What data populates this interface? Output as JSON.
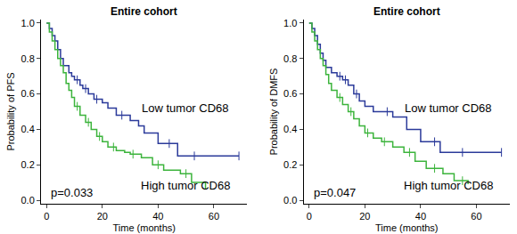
{
  "chart_data": [
    {
      "type": "line",
      "line_style": "step",
      "title": "Entire cohort",
      "x_label": "Time (months)",
      "y_label": "Probability of PFS",
      "annotation": "p=0.033",
      "xlim": [
        -2,
        72
      ],
      "xticks": [
        0,
        20,
        40,
        60
      ],
      "ylim": [
        -0.02,
        1.02
      ],
      "yticks": [
        {
          "value": 0,
          "label": "0.0"
        },
        {
          "value": 0.2,
          "label": "0.2"
        },
        {
          "value": 0.4,
          "label": "0.4"
        },
        {
          "value": 0.6,
          "label": "0.6"
        },
        {
          "value": 0.8,
          "label": "0.8"
        },
        {
          "value": 1,
          "label": "1.0"
        }
      ],
      "grid": false,
      "series": [
        {
          "name": "Low tumor CD68",
          "color": "#2b3a9a",
          "x": [
            0,
            1,
            2,
            3,
            4,
            5,
            6,
            8,
            9,
            10,
            12,
            13,
            15,
            17,
            20,
            22,
            25,
            30,
            33,
            35,
            40,
            47,
            69
          ],
          "values": [
            1,
            0.97,
            0.93,
            0.9,
            0.85,
            0.8,
            0.76,
            0.72,
            0.7,
            0.68,
            0.65,
            0.63,
            0.6,
            0.57,
            0.55,
            0.52,
            0.48,
            0.45,
            0.42,
            0.38,
            0.32,
            0.25,
            0.25
          ],
          "censor_x": [
            11,
            14,
            18,
            27,
            44,
            53,
            69
          ],
          "censor_y": [
            0.68,
            0.63,
            0.57,
            0.48,
            0.32,
            0.25,
            0.25
          ]
        },
        {
          "name": "High tumor CD68",
          "color": "#3cb43c",
          "x": [
            0,
            1,
            2,
            3,
            4,
            5,
            6,
            7,
            8,
            9,
            10,
            12,
            14,
            16,
            18,
            20,
            22,
            25,
            28,
            30,
            34,
            38,
            42,
            48,
            52,
            57
          ],
          "values": [
            1,
            0.95,
            0.9,
            0.85,
            0.8,
            0.76,
            0.72,
            0.66,
            0.62,
            0.58,
            0.53,
            0.48,
            0.44,
            0.4,
            0.36,
            0.33,
            0.3,
            0.28,
            0.27,
            0.26,
            0.24,
            0.2,
            0.17,
            0.15,
            0.1,
            0.06
          ],
          "censor_x": [
            11,
            15,
            19,
            24,
            31,
            40,
            50
          ],
          "censor_y": [
            0.53,
            0.44,
            0.36,
            0.3,
            0.26,
            0.2,
            0.15
          ]
        }
      ]
    },
    {
      "type": "line",
      "line_style": "step",
      "title": "Entire cohort",
      "x_label": "Time (months)",
      "y_label": "Probability of DMFS",
      "annotation": "p=0.047",
      "xlim": [
        -2,
        72
      ],
      "xticks": [
        0,
        20,
        40,
        60
      ],
      "ylim": [
        -0.02,
        1.02
      ],
      "yticks": [
        {
          "value": 0,
          "label": "0.0"
        },
        {
          "value": 0.2,
          "label": "0.2"
        },
        {
          "value": 0.4,
          "label": "0.4"
        },
        {
          "value": 0.6,
          "label": "0.6"
        },
        {
          "value": 0.8,
          "label": "0.8"
        },
        {
          "value": 1,
          "label": "1.0"
        }
      ],
      "grid": false,
      "series": [
        {
          "name": "Low tumor CD68",
          "color": "#2b3a9a",
          "x": [
            0,
            1,
            2,
            3,
            4,
            5,
            6,
            8,
            10,
            12,
            14,
            16,
            18,
            20,
            23,
            26,
            30,
            35,
            40,
            47,
            69
          ],
          "values": [
            1,
            0.97,
            0.93,
            0.88,
            0.83,
            0.79,
            0.75,
            0.72,
            0.7,
            0.68,
            0.65,
            0.6,
            0.56,
            0.53,
            0.5,
            0.5,
            0.47,
            0.4,
            0.33,
            0.27,
            0.27
          ],
          "censor_x": [
            11,
            13,
            17,
            28,
            45,
            55,
            69
          ],
          "censor_y": [
            0.7,
            0.68,
            0.6,
            0.5,
            0.33,
            0.27,
            0.27
          ]
        },
        {
          "name": "High tumor CD68",
          "color": "#3cb43c",
          "x": [
            0,
            1,
            2,
            3,
            4,
            5,
            6,
            7,
            8,
            10,
            12,
            14,
            16,
            18,
            20,
            23,
            26,
            30,
            34,
            38,
            42,
            48,
            52,
            57
          ],
          "values": [
            1,
            0.95,
            0.9,
            0.85,
            0.8,
            0.76,
            0.71,
            0.66,
            0.62,
            0.58,
            0.54,
            0.5,
            0.46,
            0.42,
            0.38,
            0.35,
            0.33,
            0.3,
            0.27,
            0.22,
            0.18,
            0.15,
            0.11,
            0.09
          ],
          "censor_x": [
            11,
            15,
            21,
            27,
            36,
            45,
            55
          ],
          "censor_y": [
            0.58,
            0.5,
            0.38,
            0.33,
            0.27,
            0.18,
            0.11
          ]
        }
      ]
    }
  ]
}
